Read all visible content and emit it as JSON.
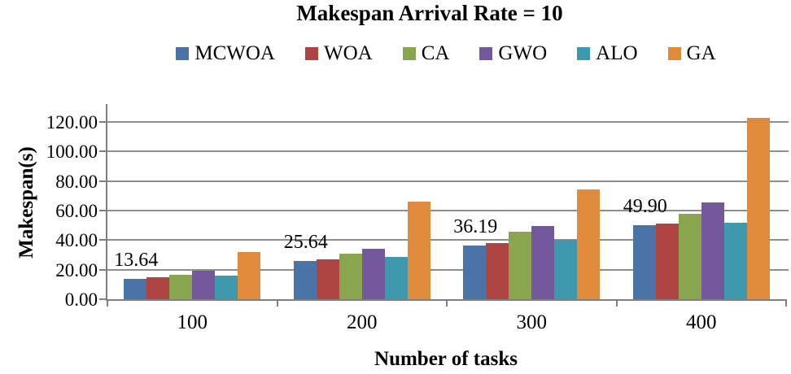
{
  "chart_data": {
    "type": "bar",
    "title": "Makespan Arrival Rate = 10",
    "xlabel": "Number of tasks",
    "ylabel": "Makespan(s)",
    "categories": [
      "100",
      "200",
      "300",
      "400"
    ],
    "series": [
      {
        "name": "MCWOA",
        "color": "#4a74a8",
        "values": [
          13.64,
          25.64,
          36.19,
          49.9
        ]
      },
      {
        "name": "WOA",
        "color": "#ae4543",
        "values": [
          15.0,
          26.9,
          38.0,
          51.4
        ]
      },
      {
        "name": "CA",
        "color": "#89a54e",
        "values": [
          16.5,
          31.0,
          45.4,
          58.0
        ]
      },
      {
        "name": "GWO",
        "color": "#73599c",
        "values": [
          19.0,
          34.1,
          49.5,
          65.4
        ]
      },
      {
        "name": "ALO",
        "color": "#3e99af",
        "values": [
          15.8,
          28.7,
          40.0,
          51.9
        ]
      },
      {
        "name": "GA",
        "color": "#e08a3c",
        "values": [
          31.8,
          65.9,
          74.2,
          122.5
        ]
      }
    ],
    "data_labels": {
      "series": "MCWOA",
      "labels": [
        "13.64",
        "25.64",
        "36.19",
        "49.90"
      ]
    },
    "y_axis": {
      "min": 0,
      "max": 132,
      "tick_step": 20,
      "tick_labels": [
        "0.00",
        "20.00",
        "40.00",
        "60.00",
        "80.00",
        "100.00",
        "120.00"
      ]
    },
    "legend_position": "top",
    "grid": true,
    "colors": {
      "gridline": "#8e8e8e",
      "axis": "#7f7f7f",
      "text": "#000000"
    }
  }
}
